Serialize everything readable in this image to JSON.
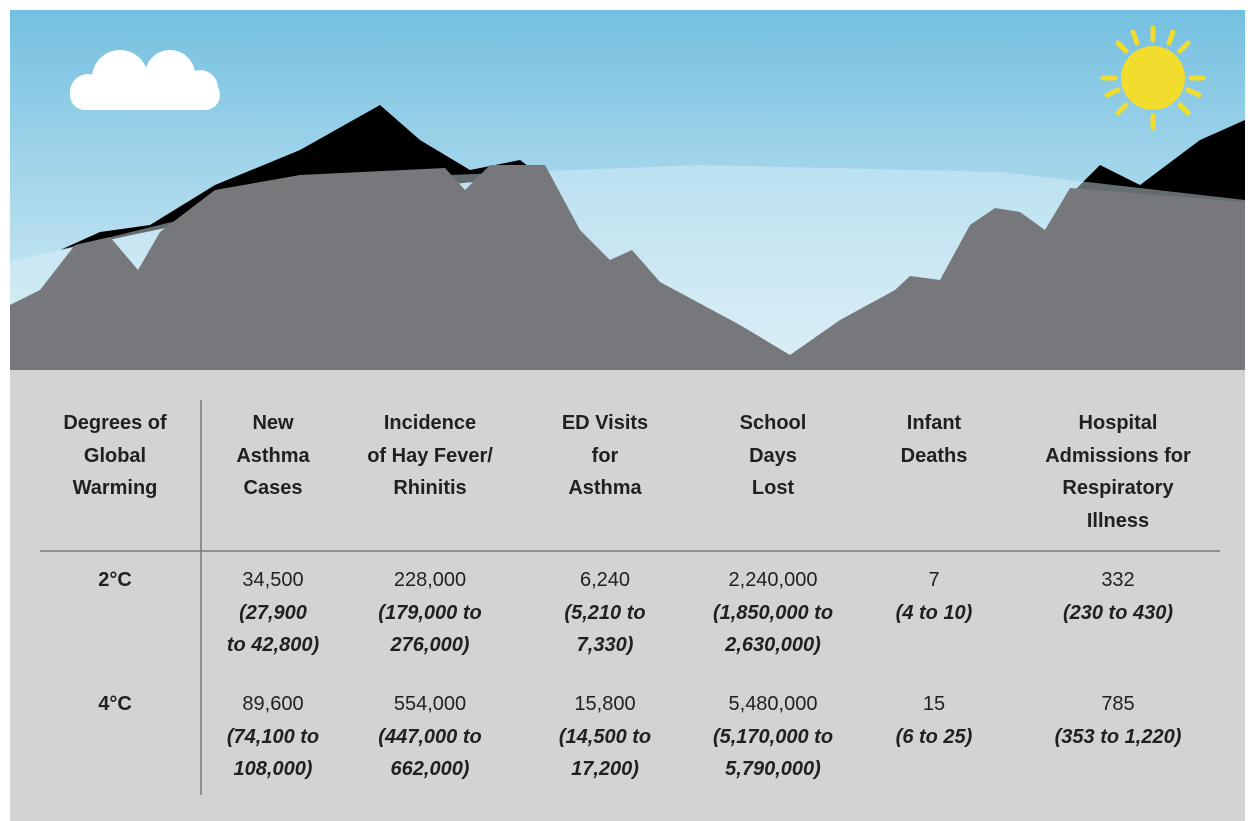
{
  "table": {
    "header": [
      [
        "Degrees of",
        "Global",
        "Warming"
      ],
      [
        "New",
        "Asthma",
        "Cases"
      ],
      [
        "Incidence",
        "of Hay Fever/",
        "Rhinitis"
      ],
      [
        "ED Visits",
        "for",
        "Asthma"
      ],
      [
        "School",
        "Days",
        "Lost"
      ],
      [
        "Infant",
        "Deaths"
      ],
      [
        "Hospital",
        "Admissions for",
        "Respiratory",
        "Illness"
      ]
    ],
    "rows": [
      {
        "label": "2°C",
        "cells": [
          {
            "value": "34,500",
            "range": [
              "(27,900",
              "to 42,800)"
            ]
          },
          {
            "value": "228,000",
            "range": [
              "(179,000 to",
              "276,000)"
            ]
          },
          {
            "value": "6,240",
            "range": [
              "(5,210 to",
              "7,330)"
            ]
          },
          {
            "value": "2,240,000",
            "range": [
              "(1,850,000 to",
              "2,630,000)"
            ]
          },
          {
            "value": "7",
            "range": [
              "(4 to 10)"
            ]
          },
          {
            "value": "332",
            "range": [
              "(230 to 430)"
            ]
          }
        ]
      },
      {
        "label": "4°C",
        "cells": [
          {
            "value": "89,600",
            "range": [
              "(74,100 to",
              "108,000)"
            ]
          },
          {
            "value": "554,000",
            "range": [
              "(447,000 to",
              "662,000)"
            ]
          },
          {
            "value": "15,800",
            "range": [
              "(14,500 to",
              "17,200)"
            ]
          },
          {
            "value": "5,480,000",
            "range": [
              "(5,170,000 to",
              "5,790,000)"
            ]
          },
          {
            "value": "15",
            "range": [
              "(6 to 25)"
            ]
          },
          {
            "value": "785",
            "range": [
              "(353 to 1,220)"
            ]
          }
        ]
      }
    ]
  }
}
